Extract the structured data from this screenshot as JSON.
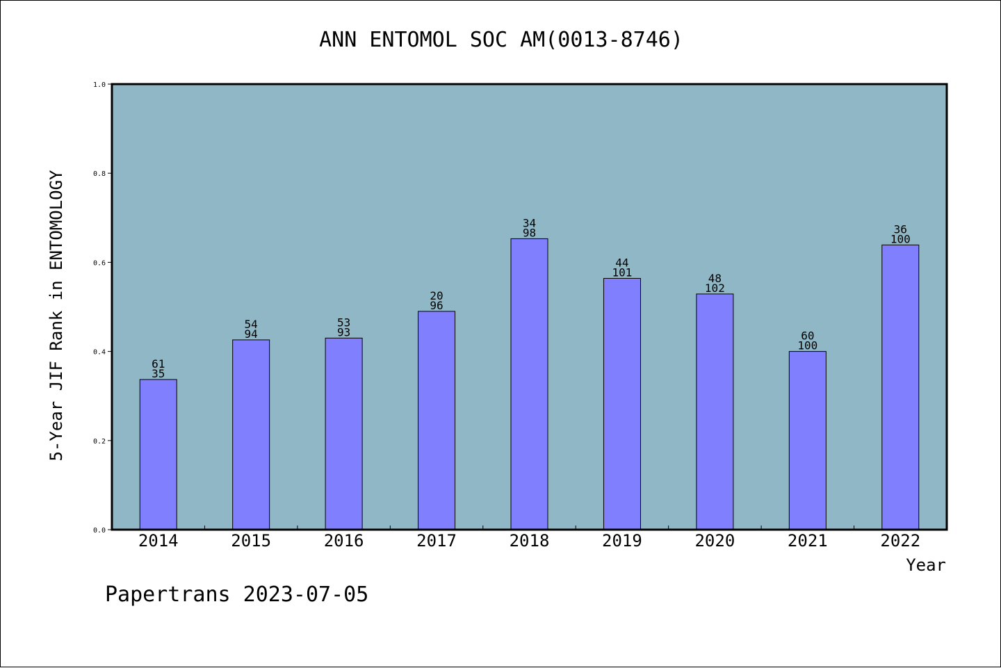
{
  "chart_data": {
    "type": "bar",
    "title": "ANN ENTOMOL SOC AM(0013-8746)",
    "xlabel": "Year",
    "ylabel": "5-Year JIF Rank in ENTOMOLOGY",
    "ylim": [
      0,
      1.0
    ],
    "yticks": [
      "0.0",
      "0.2",
      "0.4",
      "0.6",
      "0.8",
      "1.0"
    ],
    "categories": [
      "2014",
      "2015",
      "2016",
      "2017",
      "2018",
      "2019",
      "2020",
      "2021",
      "2022"
    ],
    "values": [
      0.337,
      0.426,
      0.43,
      0.49,
      0.653,
      0.564,
      0.529,
      0.4,
      0.639
    ],
    "rank": [
      "61",
      "54",
      "53",
      "20",
      "34",
      "44",
      "48",
      "60",
      "36"
    ],
    "total": [
      "35",
      "94",
      "93",
      "96",
      "98",
      "101",
      "102",
      "100",
      "100"
    ],
    "grid": false,
    "colors": {
      "plot_background": "#8fb7c5",
      "bar_fill": "#8080ff",
      "bar_stroke": "#000000"
    }
  },
  "footer": "Papertrans 2023-07-05"
}
